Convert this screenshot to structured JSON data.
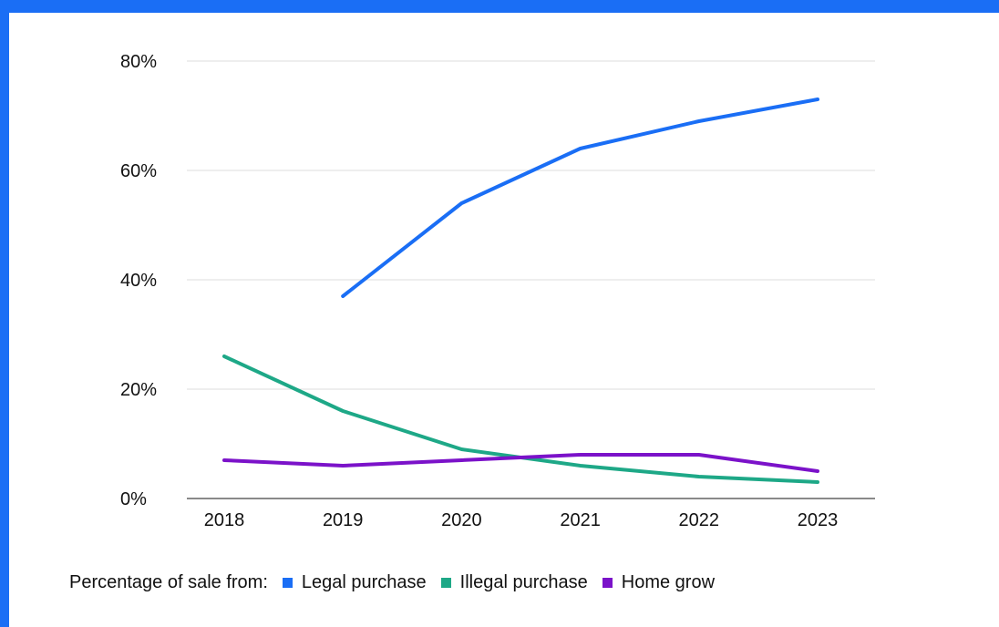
{
  "frame": {
    "background": "#1a6ef5"
  },
  "legend": {
    "prefix": "Percentage of sale from:",
    "items": [
      {
        "label": "Legal purchase",
        "color": "#1a6ef5"
      },
      {
        "label": "Illegal purchase",
        "color": "#1ea887"
      },
      {
        "label": "Home grow",
        "color": "#7b12c9"
      }
    ]
  },
  "chart_data": {
    "type": "line",
    "title": "",
    "xlabel": "",
    "ylabel": "",
    "categories": [
      "2018",
      "2019",
      "2020",
      "2021",
      "2022",
      "2023"
    ],
    "yticks": [
      "0%",
      "20%",
      "40%",
      "60%",
      "80%"
    ],
    "ylim": [
      0,
      80
    ],
    "grid": true,
    "legend_position": "bottom",
    "series": [
      {
        "name": "Legal purchase",
        "color": "#1a6ef5",
        "values": [
          null,
          37,
          54,
          64,
          69,
          73
        ]
      },
      {
        "name": "Illegal purchase",
        "color": "#1ea887",
        "values": [
          26,
          16,
          9,
          6,
          4,
          3
        ]
      },
      {
        "name": "Home grow",
        "color": "#7b12c9",
        "values": [
          7,
          6,
          7,
          8,
          8,
          5
        ]
      }
    ]
  }
}
